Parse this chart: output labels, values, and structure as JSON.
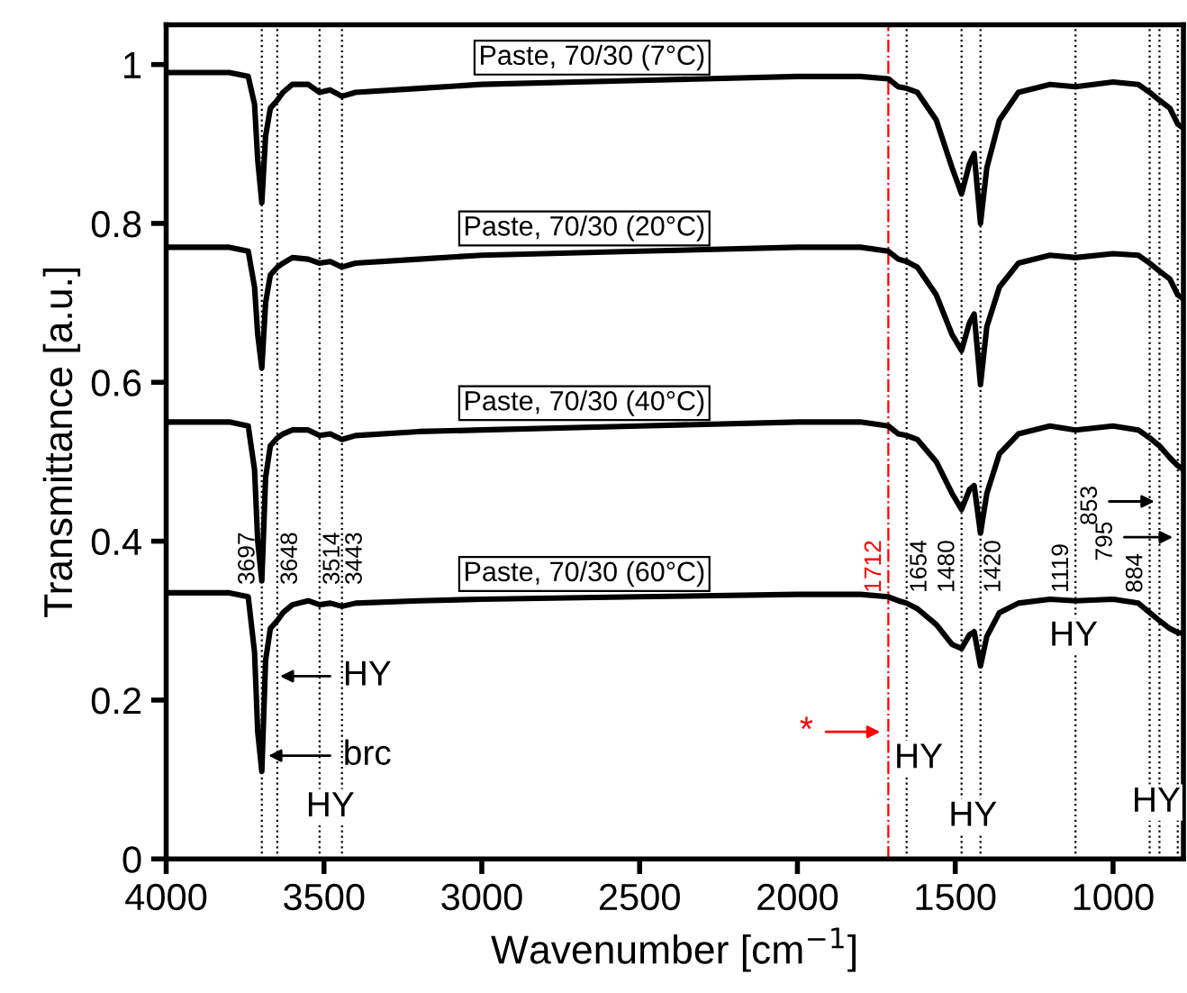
{
  "chart_data": {
    "type": "line",
    "xlabel": "Wavenumber [cm$^{−1}$]",
    "ylabel": "Transmittance [a.u.]",
    "x": [
      4000,
      3800,
      3740,
      3720,
      3710,
      3697,
      3685,
      3670,
      3648,
      3630,
      3600,
      3550,
      3514,
      3480,
      3443,
      3400,
      3200,
      3000,
      2500,
      2000,
      1800,
      1712,
      1680,
      1654,
      1620,
      1560,
      1510,
      1480,
      1455,
      1440,
      1420,
      1400,
      1360,
      1300,
      1200,
      1119,
      1000,
      920,
      884,
      853,
      820,
      795,
      777
    ],
    "series": [
      {
        "name": "Paste, 70/30 (7°C)",
        "color": "#000000",
        "values": [
          0.99,
          0.99,
          0.985,
          0.95,
          0.88,
          0.826,
          0.91,
          0.945,
          0.955,
          0.965,
          0.975,
          0.975,
          0.965,
          0.968,
          0.96,
          0.965,
          0.97,
          0.975,
          0.98,
          0.985,
          0.985,
          0.982,
          0.972,
          0.97,
          0.965,
          0.93,
          0.87,
          0.837,
          0.875,
          0.888,
          0.8,
          0.87,
          0.93,
          0.965,
          0.975,
          0.972,
          0.978,
          0.975,
          0.965,
          0.955,
          0.945,
          0.925,
          0.92
        ]
      },
      {
        "name": "Paste, 70/30 (20°C)",
        "color": "#000000",
        "values": [
          0.77,
          0.77,
          0.765,
          0.72,
          0.66,
          0.618,
          0.7,
          0.735,
          0.745,
          0.75,
          0.757,
          0.755,
          0.75,
          0.752,
          0.745,
          0.75,
          0.755,
          0.76,
          0.765,
          0.77,
          0.77,
          0.765,
          0.755,
          0.752,
          0.745,
          0.71,
          0.66,
          0.64,
          0.675,
          0.686,
          0.597,
          0.67,
          0.72,
          0.75,
          0.76,
          0.757,
          0.762,
          0.76,
          0.75,
          0.74,
          0.73,
          0.71,
          0.705
        ]
      },
      {
        "name": "Paste, 70/30 (40°C)",
        "color": "#000000",
        "values": [
          0.55,
          0.55,
          0.545,
          0.49,
          0.4,
          0.35,
          0.48,
          0.52,
          0.53,
          0.535,
          0.54,
          0.54,
          0.533,
          0.535,
          0.528,
          0.533,
          0.538,
          0.54,
          0.545,
          0.55,
          0.55,
          0.545,
          0.535,
          0.533,
          0.528,
          0.5,
          0.46,
          0.44,
          0.465,
          0.47,
          0.41,
          0.46,
          0.51,
          0.535,
          0.545,
          0.54,
          0.545,
          0.54,
          0.53,
          0.52,
          0.505,
          0.495,
          0.49
        ]
      },
      {
        "name": "Paste, 70/30 (60°C)",
        "color": "#000000",
        "values": [
          0.335,
          0.335,
          0.33,
          0.26,
          0.16,
          0.11,
          0.25,
          0.29,
          0.3,
          0.31,
          0.32,
          0.325,
          0.32,
          0.322,
          0.318,
          0.322,
          0.325,
          0.327,
          0.33,
          0.333,
          0.333,
          0.33,
          0.325,
          0.322,
          0.315,
          0.295,
          0.27,
          0.265,
          0.282,
          0.286,
          0.243,
          0.28,
          0.31,
          0.322,
          0.327,
          0.325,
          0.327,
          0.322,
          0.31,
          0.3,
          0.29,
          0.285,
          0.284
        ]
      }
    ],
    "xlim": [
      4000,
      777
    ],
    "ylim": [
      0,
      1.05
    ],
    "xticks": [
      4000,
      3500,
      3000,
      2500,
      2000,
      1500,
      1000
    ],
    "yticks": [
      0,
      0.2,
      0.4,
      0.6,
      0.8,
      1
    ],
    "ref_lines": [
      {
        "axis": "x",
        "value": 3697,
        "label": "3697",
        "color": "#000000",
        "line_style": "dotted"
      },
      {
        "axis": "x",
        "value": 3648,
        "label": "3648",
        "color": "#000000",
        "line_style": "dotted"
      },
      {
        "axis": "x",
        "value": 3514,
        "label": "3514",
        "color": "#000000",
        "line_style": "dotted"
      },
      {
        "axis": "x",
        "value": 3443,
        "label": "3443",
        "color": "#000000",
        "line_style": "dotted"
      },
      {
        "axis": "x",
        "value": 1712,
        "label": "1712",
        "color": "#ff0000",
        "line_style": "dashdot"
      },
      {
        "axis": "x",
        "value": 1654,
        "label": "1654",
        "color": "#000000",
        "line_style": "dotted"
      },
      {
        "axis": "x",
        "value": 1480,
        "label": "1480",
        "color": "#000000",
        "line_style": "dotted"
      },
      {
        "axis": "x",
        "value": 1420,
        "label": "1420",
        "color": "#000000",
        "line_style": "dotted"
      },
      {
        "axis": "x",
        "value": 1119,
        "label": "1119",
        "color": "#000000",
        "line_style": "dotted"
      },
      {
        "axis": "x",
        "value": 884,
        "label": "884",
        "color": "#000000",
        "line_style": "dotted"
      },
      {
        "axis": "x",
        "value": 853,
        "label": "853",
        "color": "#000000",
        "line_style": "dotted"
      },
      {
        "axis": "x",
        "value": 795,
        "label": "795",
        "color": "#000000",
        "line_style": "dotted"
      }
    ],
    "annotations": [
      "HY",
      "brc",
      "HY",
      "*",
      "HY",
      "HY",
      "HY",
      "HY"
    ],
    "grid": false,
    "legend": false,
    "marker": "none",
    "line_style": "solid"
  }
}
